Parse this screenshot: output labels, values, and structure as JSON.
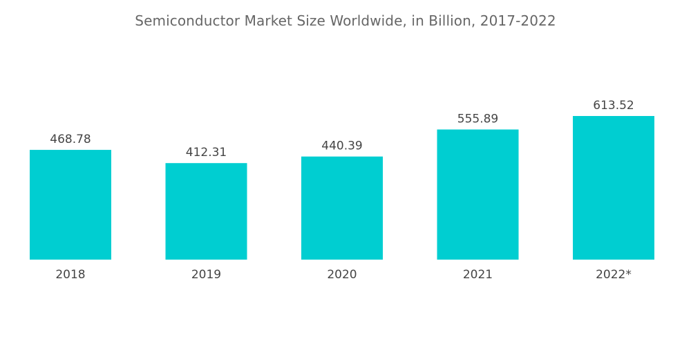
{
  "chart_data": {
    "type": "bar",
    "title": "Semiconductor Market Size Worldwide, in Billion, 2017-2022",
    "categories": [
      "2018",
      "2019",
      "2020",
      "2021",
      "2022*"
    ],
    "values": [
      468.78,
      412.31,
      440.39,
      555.89,
      613.52
    ],
    "value_labels": [
      "468.78",
      "412.31",
      "440.39",
      "555.89",
      "613.52"
    ],
    "xlabel": "",
    "ylabel": "",
    "ylim": [
      0,
      613.52
    ],
    "grid": false,
    "legend": "none",
    "colors": {
      "bar": "#00CED1",
      "text": "#444444",
      "title": "#666666"
    }
  }
}
